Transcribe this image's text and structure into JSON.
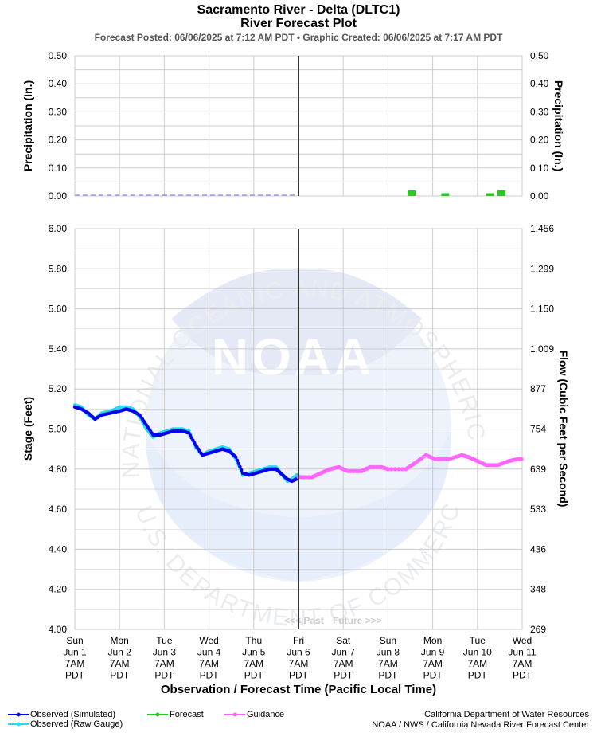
{
  "title_line1": "Sacramento River - Delta (DLTC1)",
  "title_line2": "River Forecast Plot",
  "subtitle": "Forecast Posted: 06/06/2025 at 7:12 AM PDT  •  Graphic Created: 06/06/2025 at 7:17 AM PDT",
  "watermark": {
    "agency_text": "NATIONAL OCEANIC AND ATMOSPHERIC ADMINISTRATION",
    "dept_text": "U.S. DEPARTMENT OF COMMERCE",
    "logo_text": "NOAA"
  },
  "past_label": "<<< Past",
  "future_label": "Future >>>",
  "legend": {
    "observed_simulated": "Observed (Simulated)",
    "observed_raw": "Observed (Raw Gauge)",
    "forecast": "Forecast",
    "guidance": "Guidance"
  },
  "source_line1": "California Department of Water Resources",
  "source_line2": "NOAA / NWS / California Nevada River Forecast Center",
  "colors": {
    "observed_simulated": "#0000ee",
    "observed_raw": "#22ddee",
    "forecast": "#22cc22",
    "guidance": "#ff66ff",
    "now_line": "#333333",
    "grid": "#cccccc"
  },
  "chart_data": [
    {
      "type": "bar",
      "ylabel_left": "Precipitation (In.)",
      "ylabel_right": "Precipitation (In.)",
      "ylim": [
        0,
        0.5
      ],
      "y_ticks": [
        "0.50",
        "0.40",
        "0.30",
        "0.20",
        "0.10",
        "0.00"
      ],
      "observed_dashed_to_day": 5.0,
      "forecast_bars": [
        {
          "day": 7.53,
          "value": 0.02
        },
        {
          "day": 8.28,
          "value": 0.01
        },
        {
          "day": 9.28,
          "value": 0.01
        },
        {
          "day": 9.53,
          "value": 0.02
        }
      ]
    },
    {
      "type": "line",
      "xlabel": "Observation / Forecast Time (Pacific Local Time)",
      "ylabel_left": "Stage (Feet)",
      "ylabel_right": "Flow (Cubic Feet per Second)",
      "ylim": [
        4.0,
        6.0
      ],
      "y_ticks": [
        "6.00",
        "5.80",
        "5.60",
        "5.40",
        "5.20",
        "5.00",
        "4.80",
        "4.60",
        "4.40",
        "4.20",
        "4.00"
      ],
      "flow_ticks": [
        "1,456",
        "1,299",
        "1,150",
        "1,009",
        "877",
        "754",
        "639",
        "533",
        "436",
        "348",
        "269"
      ],
      "x_ticks": [
        [
          "Sun",
          "Jun 1",
          "7AM",
          "PDT"
        ],
        [
          "Mon",
          "Jun 2",
          "7AM",
          "PDT"
        ],
        [
          "Tue",
          "Jun 3",
          "7AM",
          "PDT"
        ],
        [
          "Wed",
          "Jun 4",
          "7AM",
          "PDT"
        ],
        [
          "Thu",
          "Jun 5",
          "7AM",
          "PDT"
        ],
        [
          "Fri",
          "Jun 6",
          "7AM",
          "PDT"
        ],
        [
          "Sat",
          "Jun 7",
          "7AM",
          "PDT"
        ],
        [
          "Sun",
          "Jun 8",
          "7AM",
          "PDT"
        ],
        [
          "Mon",
          "Jun 9",
          "7AM",
          "PDT"
        ],
        [
          "Tue",
          "Jun 10",
          "7AM",
          "PDT"
        ],
        [
          "Wed",
          "Jun 11",
          "7AM",
          "PDT"
        ]
      ],
      "now_day": 5.0,
      "series": [
        {
          "name": "Observed (Simulated)",
          "points": [
            [
              0.0,
              5.11
            ],
            [
              0.15,
              5.1
            ],
            [
              0.3,
              5.08
            ],
            [
              0.45,
              5.05
            ],
            [
              0.6,
              5.07
            ],
            [
              0.8,
              5.08
            ],
            [
              1.0,
              5.09
            ],
            [
              1.15,
              5.1
            ],
            [
              1.3,
              5.09
            ],
            [
              1.45,
              5.07
            ],
            [
              1.6,
              5.02
            ],
            [
              1.75,
              4.97
            ],
            [
              1.9,
              4.97
            ],
            [
              2.05,
              4.98
            ],
            [
              2.2,
              4.99
            ],
            [
              2.4,
              4.99
            ],
            [
              2.55,
              4.98
            ],
            [
              2.7,
              4.92
            ],
            [
              2.85,
              4.87
            ],
            [
              3.0,
              4.88
            ],
            [
              3.15,
              4.89
            ],
            [
              3.3,
              4.9
            ],
            [
              3.45,
              4.89
            ],
            [
              3.6,
              4.86
            ],
            [
              3.75,
              4.78
            ],
            [
              3.9,
              4.77
            ],
            [
              4.05,
              4.78
            ],
            [
              4.2,
              4.79
            ],
            [
              4.35,
              4.8
            ],
            [
              4.5,
              4.8
            ],
            [
              4.6,
              4.78
            ],
            [
              4.75,
              4.75
            ],
            [
              4.85,
              4.74
            ],
            [
              4.95,
              4.75
            ],
            [
              5.0,
              4.76
            ]
          ]
        },
        {
          "name": "Observed (Raw Gauge)",
          "points": [
            [
              0.0,
              5.12
            ],
            [
              0.15,
              5.11
            ],
            [
              0.3,
              5.07
            ],
            [
              0.45,
              5.05
            ],
            [
              0.6,
              5.08
            ],
            [
              0.8,
              5.09
            ],
            [
              1.0,
              5.11
            ],
            [
              1.15,
              5.11
            ],
            [
              1.3,
              5.1
            ],
            [
              1.45,
              5.06
            ],
            [
              1.6,
              5.0
            ],
            [
              1.75,
              4.96
            ],
            [
              1.9,
              4.98
            ],
            [
              2.05,
              4.99
            ],
            [
              2.2,
              5.0
            ],
            [
              2.4,
              5.0
            ],
            [
              2.55,
              4.99
            ],
            [
              2.7,
              4.91
            ],
            [
              2.85,
              4.87
            ],
            [
              3.0,
              4.89
            ],
            [
              3.15,
              4.9
            ],
            [
              3.3,
              4.91
            ],
            [
              3.45,
              4.9
            ],
            [
              3.6,
              4.85
            ],
            [
              3.75,
              4.77
            ],
            [
              3.9,
              4.78
            ],
            [
              4.05,
              4.79
            ],
            [
              4.2,
              4.8
            ],
            [
              4.35,
              4.81
            ],
            [
              4.5,
              4.81
            ],
            [
              4.6,
              4.78
            ],
            [
              4.75,
              4.74
            ],
            [
              4.85,
              4.75
            ],
            [
              4.95,
              4.77
            ],
            [
              5.0,
              4.77
            ]
          ]
        },
        {
          "name": "Guidance",
          "points": [
            [
              5.0,
              4.76
            ],
            [
              5.3,
              4.76
            ],
            [
              5.5,
              4.78
            ],
            [
              5.7,
              4.8
            ],
            [
              5.9,
              4.81
            ],
            [
              6.1,
              4.79
            ],
            [
              6.4,
              4.79
            ],
            [
              6.6,
              4.81
            ],
            [
              6.85,
              4.81
            ],
            [
              7.0,
              4.8
            ],
            [
              7.4,
              4.8
            ],
            [
              7.6,
              4.83
            ],
            [
              7.85,
              4.87
            ],
            [
              8.05,
              4.85
            ],
            [
              8.35,
              4.85
            ],
            [
              8.65,
              4.87
            ],
            [
              8.8,
              4.86
            ],
            [
              9.0,
              4.84
            ],
            [
              9.2,
              4.82
            ],
            [
              9.45,
              4.82
            ],
            [
              9.7,
              4.84
            ],
            [
              9.9,
              4.85
            ],
            [
              10.0,
              4.85
            ]
          ]
        }
      ]
    }
  ]
}
